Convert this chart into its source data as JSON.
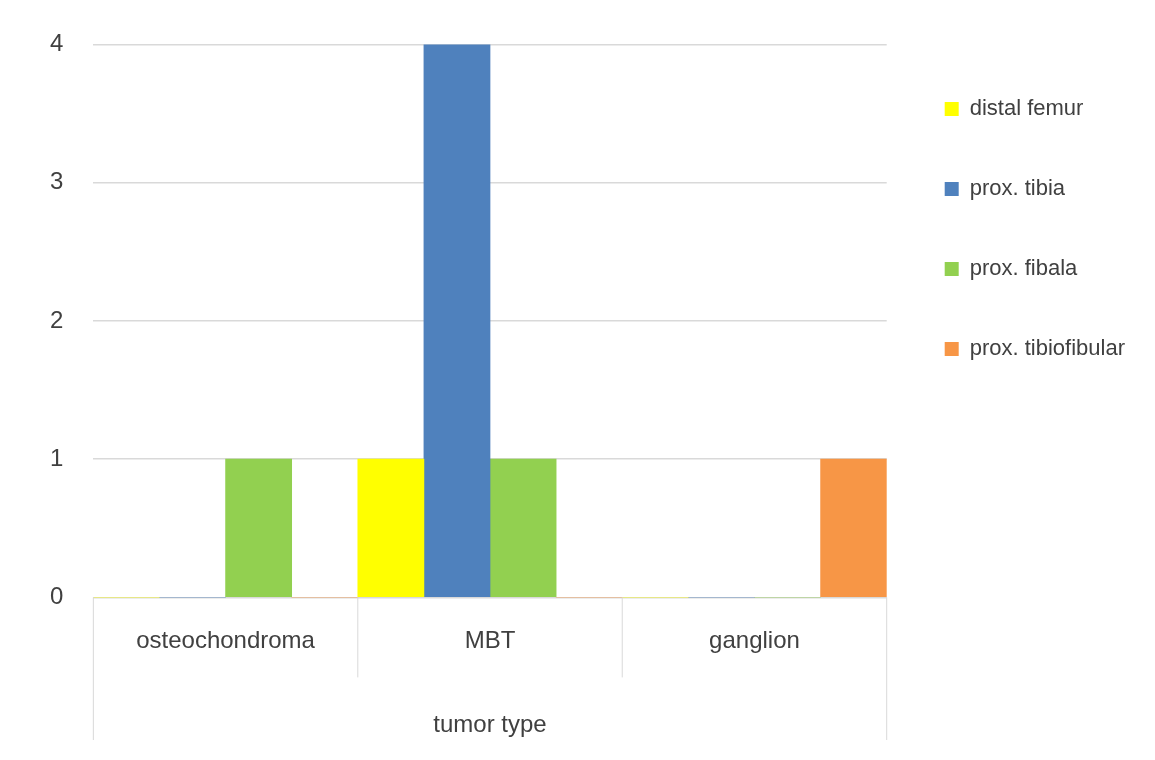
{
  "chart_data": {
    "type": "bar",
    "xlabel": "tumor type",
    "categories": [
      "osteochondroma",
      "MBT",
      "ganglion"
    ],
    "series": [
      {
        "name": "distal femur",
        "color": "#ffff00",
        "values": [
          0,
          1,
          0
        ]
      },
      {
        "name": "prox. tibia",
        "color": "#4f81bd",
        "values": [
          0,
          4,
          0
        ]
      },
      {
        "name": "prox. fibala",
        "color": "#92d050",
        "values": [
          1,
          1,
          0
        ]
      },
      {
        "name": "prox. tibiofibular",
        "color": "#f79646",
        "values": [
          0,
          0,
          1
        ]
      }
    ],
    "ylim": [
      0,
      4
    ],
    "yticks": [
      0,
      1,
      2,
      3,
      4
    ],
    "grid": "y",
    "legend": "right"
  }
}
